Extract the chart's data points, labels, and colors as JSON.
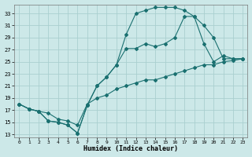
{
  "xlabel": "Humidex (Indice chaleur)",
  "bg_color": "#cce8e8",
  "grid_color": "#aacfcf",
  "line_color": "#1a7070",
  "xlim": [
    -0.5,
    23.5
  ],
  "ylim": [
    12.5,
    34.5
  ],
  "xticks": [
    0,
    1,
    2,
    3,
    4,
    5,
    6,
    7,
    8,
    9,
    10,
    11,
    12,
    13,
    14,
    15,
    16,
    17,
    18,
    19,
    20,
    21,
    22,
    23
  ],
  "yticks": [
    13,
    15,
    17,
    19,
    21,
    23,
    25,
    27,
    29,
    31,
    33
  ],
  "line1_x": [
    0,
    1,
    2,
    3,
    4,
    5,
    6,
    7,
    8,
    9,
    10,
    11,
    12,
    13,
    14,
    15,
    16,
    17,
    18,
    19,
    20,
    21,
    22,
    23
  ],
  "line1_y": [
    18.0,
    17.2,
    16.8,
    15.2,
    15.0,
    14.5,
    13.2,
    17.8,
    21.0,
    22.5,
    24.5,
    29.5,
    33.0,
    33.5,
    34.0,
    34.0,
    34.0,
    33.5,
    32.5,
    31.0,
    29.0,
    25.5,
    25.5,
    25.5
  ],
  "line2_x": [
    0,
    1,
    2,
    3,
    4,
    5,
    6,
    7,
    8,
    9,
    10,
    11,
    12,
    13,
    14,
    15,
    16,
    17,
    18,
    19,
    20,
    21,
    22,
    23
  ],
  "line2_y": [
    18.0,
    17.2,
    16.8,
    15.2,
    15.0,
    14.5,
    13.2,
    17.8,
    21.0,
    22.5,
    24.5,
    27.2,
    27.2,
    28.0,
    27.5,
    28.0,
    29.0,
    32.5,
    32.5,
    28.0,
    25.0,
    26.0,
    25.5,
    25.5
  ],
  "line3_x": [
    0,
    1,
    2,
    3,
    4,
    5,
    6,
    7,
    8,
    9,
    10,
    11,
    12,
    13,
    14,
    15,
    16,
    17,
    18,
    19,
    20,
    21,
    22,
    23
  ],
  "line3_y": [
    18.0,
    17.2,
    16.8,
    16.5,
    15.5,
    15.2,
    14.5,
    18.0,
    19.0,
    19.5,
    20.5,
    21.0,
    21.5,
    22.0,
    22.0,
    22.5,
    23.0,
    23.5,
    24.0,
    24.5,
    24.5,
    25.0,
    25.2,
    25.5
  ]
}
